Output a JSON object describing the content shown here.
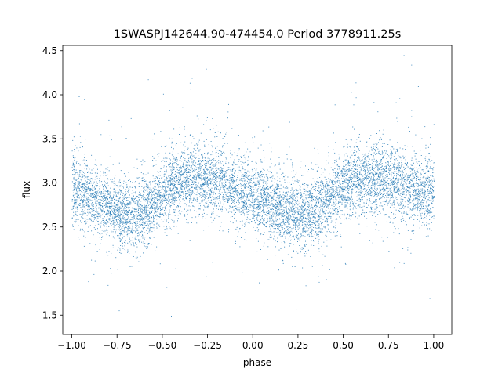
{
  "chart_data": {
    "type": "scatter",
    "title": "1SWASPJ142644.90-474454.0 Period 3778911.25s",
    "xlabel": "phase",
    "ylabel": "flux",
    "xlim": [
      -1.05,
      1.1
    ],
    "ylim": [
      1.28,
      4.56
    ],
    "xticks": [
      -1.0,
      -0.75,
      -0.5,
      -0.25,
      0.0,
      0.25,
      0.5,
      0.75,
      1.0
    ],
    "xtick_labels": [
      "−1.00",
      "−0.75",
      "−0.50",
      "−0.25",
      "0.00",
      "0.25",
      "0.50",
      "0.75",
      "1.00"
    ],
    "yticks": [
      1.5,
      2.0,
      2.5,
      3.0,
      3.5,
      4.0,
      4.5
    ],
    "ytick_labels": [
      "1.5",
      "2.0",
      "2.5",
      "3.0",
      "3.5",
      "4.0",
      "4.5"
    ],
    "grid": false,
    "color": "#1f77b4",
    "series": [
      {
        "description_of_shape": "phase-folded light curve; duplicated over phase -1..1; sinusoidal modulation",
        "x": [
          -1.0,
          -0.95,
          -0.9,
          -0.85,
          -0.8,
          -0.75,
          -0.7,
          -0.65,
          -0.6,
          -0.55,
          -0.5,
          -0.45,
          -0.4,
          -0.35,
          -0.3,
          -0.25,
          -0.2,
          -0.15,
          -0.1,
          -0.05,
          0.0,
          0.05,
          0.1,
          0.15,
          0.2,
          0.25,
          0.3,
          0.35,
          0.4,
          0.45,
          0.5,
          0.55,
          0.6,
          0.65,
          0.7,
          0.75,
          0.8,
          0.85,
          0.9,
          0.95,
          1.0
        ],
        "y": [
          2.95,
          2.9,
          2.85,
          2.78,
          2.72,
          2.68,
          2.65,
          2.63,
          2.7,
          2.78,
          2.88,
          2.97,
          3.02,
          3.05,
          3.07,
          3.06,
          3.04,
          3.0,
          2.95,
          2.9,
          2.87,
          2.83,
          2.78,
          2.72,
          2.68,
          2.65,
          2.63,
          2.7,
          2.78,
          2.88,
          2.97,
          3.02,
          3.05,
          3.07,
          3.06,
          3.04,
          3.0,
          2.95,
          2.92,
          2.9,
          2.95
        ]
      }
    ]
  }
}
